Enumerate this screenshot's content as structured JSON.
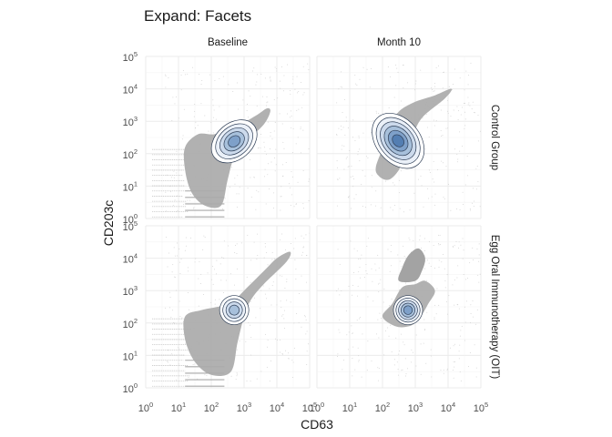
{
  "chart_data": {
    "type": "scatter",
    "title": "Expand: Facets",
    "xlabel": "CD63",
    "ylabel": "CD203c",
    "x_scale": "log10",
    "y_scale": "log10",
    "xlim": [
      1,
      100000
    ],
    "ylim": [
      1,
      100000
    ],
    "x_ticks": [
      "10^0",
      "10^1",
      "10^2",
      "10^3",
      "10^4",
      "10^5"
    ],
    "y_ticks": [
      "10^0",
      "10^1",
      "10^2",
      "10^3",
      "10^4",
      "10^5"
    ],
    "grid": true,
    "columns": [
      "Baseline",
      "Month 10"
    ],
    "rows": [
      "Control Group",
      "Egg Oral Immunotherapy (OIT)"
    ],
    "panels": [
      {
        "column": "Baseline",
        "row": "Control Group",
        "cloud": [
          [
            1.2,
            1.5
          ],
          [
            1.2,
            2.2
          ],
          [
            1.6,
            2.6
          ],
          [
            2.1,
            2.6
          ],
          [
            2.7,
            2.8
          ],
          [
            3.4,
            3.2
          ],
          [
            3.7,
            3.4
          ],
          [
            3.8,
            3.3
          ],
          [
            3.6,
            2.9
          ],
          [
            3.1,
            2.4
          ],
          [
            2.7,
            1.9
          ],
          [
            2.5,
            1.2
          ],
          [
            2.3,
            0.4
          ],
          [
            1.8,
            0.4
          ],
          [
            1.4,
            0.8
          ]
        ],
        "density_peak": [
          500,
          240
        ],
        "density_levels": 5
      },
      {
        "column": "Month 10",
        "row": "Control Group",
        "cloud": [
          [
            1.8,
            1.6
          ],
          [
            2.1,
            2.4
          ],
          [
            2.2,
            2.8
          ],
          [
            2.5,
            3.3
          ],
          [
            3.0,
            3.6
          ],
          [
            3.6,
            3.8
          ],
          [
            4.1,
            4.0
          ],
          [
            3.9,
            3.7
          ],
          [
            3.2,
            3.1
          ],
          [
            2.9,
            2.5
          ],
          [
            2.7,
            2.0
          ],
          [
            2.5,
            1.5
          ],
          [
            2.2,
            1.2
          ],
          [
            1.9,
            1.3
          ]
        ],
        "density_peak": [
          300,
          250
        ],
        "density_levels": 6
      },
      {
        "column": "Baseline",
        "row": "Egg Oral Immunotherapy (OIT)",
        "cloud": [
          [
            1.2,
            1.5
          ],
          [
            1.2,
            2.2
          ],
          [
            1.7,
            2.4
          ],
          [
            2.2,
            2.5
          ],
          [
            2.6,
            2.6
          ],
          [
            3.0,
            3.0
          ],
          [
            3.6,
            3.6
          ],
          [
            4.0,
            4.0
          ],
          [
            4.4,
            4.2
          ],
          [
            4.3,
            3.9
          ],
          [
            3.6,
            3.2
          ],
          [
            3.2,
            2.7
          ],
          [
            3.0,
            2.2
          ],
          [
            2.8,
            1.4
          ],
          [
            2.6,
            0.5
          ],
          [
            2.0,
            0.4
          ],
          [
            1.5,
            0.8
          ]
        ],
        "density_peak": [
          500,
          250
        ],
        "density_levels": 4
      },
      {
        "column": "Month 10",
        "row": "Egg Oral Immunotherapy (OIT)",
        "cloud": [
          [
            2.0,
            2.2
          ],
          [
            2.3,
            2.6
          ],
          [
            2.6,
            3.1
          ],
          [
            3.0,
            3.2
          ],
          [
            3.3,
            3.3
          ],
          [
            3.6,
            3.0
          ],
          [
            3.4,
            2.6
          ],
          [
            3.1,
            2.1
          ],
          [
            2.8,
            1.9
          ],
          [
            2.4,
            1.9
          ]
        ],
        "upper_cloud": [
          [
            2.5,
            3.3
          ],
          [
            2.6,
            3.7
          ],
          [
            2.8,
            4.1
          ],
          [
            3.1,
            4.3
          ],
          [
            3.3,
            4.0
          ],
          [
            3.2,
            3.6
          ],
          [
            3.0,
            3.3
          ]
        ],
        "density_peak": [
          600,
          250
        ],
        "density_levels": 5
      }
    ]
  }
}
